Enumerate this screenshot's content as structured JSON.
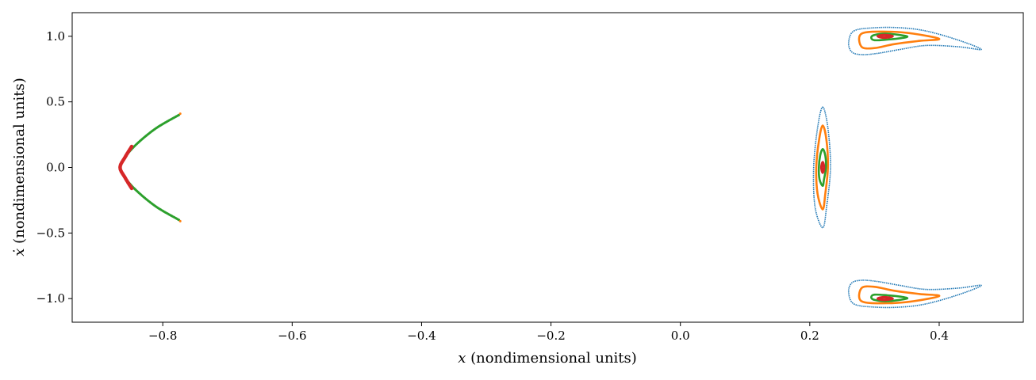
{
  "chart_data": {
    "type": "scatter",
    "title": "",
    "xlabel_var": "x",
    "xlabel_rest": " (nondimensional units)",
    "ylabel_var": "ẋ",
    "ylabel_rest": " (nondimensional units)",
    "xlim": [
      -0.94,
      0.53
    ],
    "ylim": [
      -1.18,
      1.18
    ],
    "grid": false,
    "legend": "none",
    "xticks": [
      {
        "value": -0.8,
        "label": "−0.8"
      },
      {
        "value": -0.6,
        "label": "−0.6"
      },
      {
        "value": -0.4,
        "label": "−0.4"
      },
      {
        "value": -0.2,
        "label": "−0.2"
      },
      {
        "value": 0.0,
        "label": "0.0"
      },
      {
        "value": 0.2,
        "label": "0.2"
      },
      {
        "value": 0.4,
        "label": "0.4"
      }
    ],
    "yticks": [
      {
        "value": -1.0,
        "label": "−1.0"
      },
      {
        "value": -0.5,
        "label": "−0.5"
      },
      {
        "value": 0.0,
        "label": "0.0"
      },
      {
        "value": 0.5,
        "label": "0.5"
      },
      {
        "value": 1.0,
        "label": "1.0"
      }
    ],
    "series": [
      {
        "color": "#1f77b4",
        "islands": [
          {
            "x": [
              0.22,
              0.228,
              0.232,
              0.226,
              0.22,
              0.208,
              0.206,
              0.212,
              0.22
            ],
            "y": [
              0.46,
              0.3,
              0.0,
              -0.3,
              -0.46,
              -0.3,
              0.0,
              0.3,
              0.46
            ]
          },
          {
            "x": [
              0.268,
              0.3,
              0.34,
              0.38,
              0.43,
              0.465,
              0.43,
              0.38,
              0.34,
              0.305,
              0.28,
              0.265,
              0.26,
              0.268
            ],
            "y": [
              1.04,
              1.065,
              1.065,
              1.04,
              0.97,
              0.9,
              0.92,
              0.93,
              0.9,
              0.87,
              0.86,
              0.88,
              0.95,
              1.04
            ]
          },
          {
            "x": [
              0.268,
              0.3,
              0.34,
              0.38,
              0.43,
              0.465,
              0.43,
              0.38,
              0.34,
              0.305,
              0.28,
              0.265,
              0.26,
              0.268
            ],
            "y": [
              -1.04,
              -1.065,
              -1.065,
              -1.04,
              -0.97,
              -0.9,
              -0.92,
              -0.93,
              -0.9,
              -0.87,
              -0.86,
              -0.88,
              -0.95,
              -1.04
            ]
          }
        ]
      },
      {
        "color": "#ff7f0e",
        "islands": [
          {
            "x": [
              0.22,
              0.226,
              0.228,
              0.224,
              0.22,
              0.212,
              0.21,
              0.214,
              0.22
            ],
            "y": [
              0.32,
              0.2,
              0.0,
              -0.2,
              -0.32,
              -0.2,
              0.0,
              0.2,
              0.32
            ]
          },
          {
            "x": [
              0.28,
              0.32,
              0.36,
              0.4,
              0.37,
              0.33,
              0.3,
              0.28,
              0.28
            ],
            "y": [
              1.02,
              1.035,
              1.02,
              0.98,
              0.965,
              0.94,
              0.91,
              0.92,
              1.02
            ]
          },
          {
            "x": [
              0.28,
              0.32,
              0.36,
              0.4,
              0.37,
              0.33,
              0.3,
              0.28,
              0.28
            ],
            "y": [
              -1.02,
              -1.035,
              -1.02,
              -0.98,
              -0.965,
              -0.94,
              -0.91,
              -0.92,
              -1.02
            ]
          }
        ]
      },
      {
        "color": "#2ca02c",
        "islands": [
          {
            "x": [
              0.22,
              0.224,
              0.225,
              0.222,
              0.22,
              0.215,
              0.214,
              0.216,
              0.22
            ],
            "y": [
              0.14,
              0.09,
              0.0,
              -0.09,
              -0.14,
              -0.09,
              0.0,
              0.09,
              0.14
            ]
          },
          {
            "x": [
              0.3,
              0.32,
              0.35,
              0.34,
              0.32,
              0.3,
              0.295,
              0.3
            ],
            "y": [
              1.01,
              1.02,
              1.0,
              0.985,
              0.975,
              0.97,
              0.99,
              1.01
            ]
          },
          {
            "x": [
              0.3,
              0.32,
              0.35,
              0.34,
              0.32,
              0.3,
              0.295,
              0.3
            ],
            "y": [
              -1.01,
              -1.02,
              -1.0,
              -0.985,
              -0.975,
              -0.97,
              -0.99,
              -1.01
            ]
          }
        ],
        "arcs": [
          {
            "x": [
              -0.775,
              -0.81,
              -0.84,
              -0.858,
              -0.866,
              -0.858,
              -0.84,
              -0.81,
              -0.775
            ],
            "y": [
              0.4,
              0.3,
              0.18,
              0.08,
              0.0,
              -0.08,
              -0.18,
              -0.3,
              -0.4
            ]
          }
        ]
      },
      {
        "color": "#d62728",
        "islands": [
          {
            "x": [
              0.22,
              0.222,
              0.22,
              0.218,
              0.22
            ],
            "y": [
              0.04,
              0.0,
              -0.04,
              0.0,
              0.04
            ]
          },
          {
            "x": [
              0.315,
              0.328,
              0.315,
              0.305,
              0.315
            ],
            "y": [
              1.01,
              1.0,
              0.99,
              1.0,
              1.01
            ]
          },
          {
            "x": [
              0.315,
              0.328,
              0.315,
              0.305,
              0.315
            ],
            "y": [
              -1.01,
              -1.0,
              -0.99,
              -1.0,
              -1.01
            ]
          }
        ],
        "arcs": [
          {
            "x": [
              -0.848,
              -0.858,
              -0.866,
              -0.858,
              -0.848
            ],
            "y": [
              0.16,
              0.08,
              0.0,
              -0.08,
              -0.16
            ]
          }
        ]
      }
    ],
    "scatter_tips": {
      "color": "#ff7f0e",
      "points": [
        {
          "x": -0.773,
          "y": 0.41
        },
        {
          "x": -0.773,
          "y": -0.41
        }
      ]
    }
  }
}
